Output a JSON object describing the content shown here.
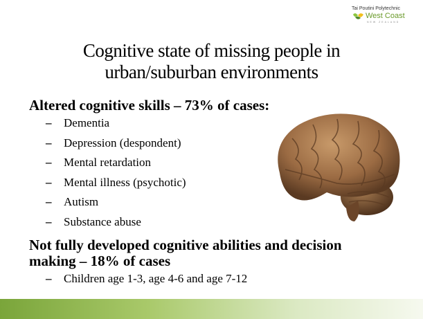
{
  "header": {
    "logo": {
      "institution": "Tai Poutini Polytechnic",
      "region": "West Coast",
      "country": "NEW ZEALAND"
    }
  },
  "title": {
    "lines": [
      "Cognitive state of missing people in",
      "urban/suburban environments"
    ]
  },
  "sections": [
    {
      "heading": [
        "Altered cognitive skills – 73% of cases:"
      ],
      "items": [
        "Dementia",
        "Depression (despondent)",
        "Mental retardation",
        "Mental illness (psychotic)",
        "Autism",
        "Substance abuse"
      ]
    },
    {
      "heading": [
        "Not fully developed cognitive abilities and decision",
        "making – 18% of cases"
      ],
      "items": [
        "Children age 1-3, age 4-6 and age 7-12"
      ]
    }
  ]
}
